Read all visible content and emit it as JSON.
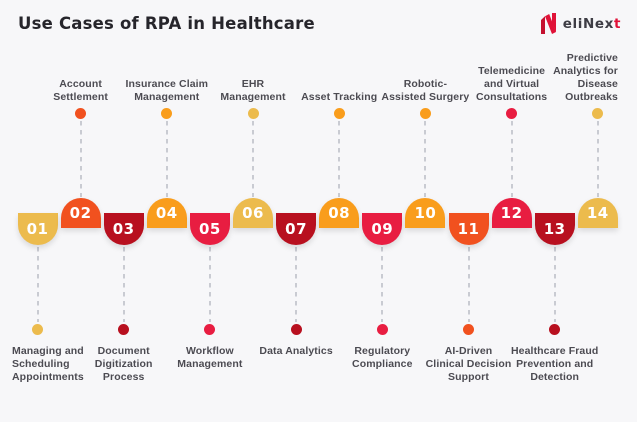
{
  "title": "Use Cases of RPA in Healthcare",
  "logo": {
    "text_main": "eliNex",
    "text_accent": "t",
    "mark_color": "#E01238",
    "mark_color_dark": "#A60F2D",
    "text_color": "#3E3D45",
    "accent_color": "#E01238"
  },
  "colors": {
    "background": "#F7F7F9",
    "connector": "#C9CBD2",
    "title_text": "#26252B",
    "label_text": "#4C4B52"
  },
  "items": [
    {
      "number": "01",
      "label": "Managing and\nScheduling\nAppointments",
      "side": "bottom",
      "align": "left",
      "color": "#ECBB4D"
    },
    {
      "number": "02",
      "label": "Account\nSettlement",
      "side": "top",
      "align": "center",
      "color": "#F1511F"
    },
    {
      "number": "03",
      "label": "Document\nDigitization\nProcess",
      "side": "bottom",
      "align": "center",
      "color": "#B8101F"
    },
    {
      "number": "04",
      "label": "Insurance Claim\nManagement",
      "side": "top",
      "align": "center",
      "color": "#F99D1C"
    },
    {
      "number": "05",
      "label": "Workflow\nManagement",
      "side": "bottom",
      "align": "center",
      "color": "#E81D41"
    },
    {
      "number": "06",
      "label": "EHR\nManagement",
      "side": "top",
      "align": "center",
      "color": "#ECBB4D"
    },
    {
      "number": "07",
      "label": "Data Analytics",
      "side": "bottom",
      "align": "center",
      "color": "#B8101F"
    },
    {
      "number": "08",
      "label": "Asset Tracking",
      "side": "top",
      "align": "center",
      "color": "#F99D1C"
    },
    {
      "number": "09",
      "label": "Regulatory\nCompliance",
      "side": "bottom",
      "align": "center",
      "color": "#E81D41"
    },
    {
      "number": "10",
      "label": "Robotic-\nAssisted Surgery",
      "side": "top",
      "align": "center",
      "color": "#F99D1C"
    },
    {
      "number": "11",
      "label": "AI-Driven\nClinical Decision\nSupport",
      "side": "bottom",
      "align": "center",
      "color": "#F1511F"
    },
    {
      "number": "12",
      "label": "Telemedicine\nand Virtual\nConsultations",
      "side": "top",
      "align": "center",
      "color": "#E81D41"
    },
    {
      "number": "13",
      "label": "Healthcare Fraud\nPrevention and\nDetection",
      "side": "bottom",
      "align": "center",
      "color": "#B8101F"
    },
    {
      "number": "14",
      "label": "Predictive\nAnalytics for\nDisease\nOutbreaks",
      "side": "top",
      "align": "right",
      "color": "#ECBB4D"
    }
  ]
}
